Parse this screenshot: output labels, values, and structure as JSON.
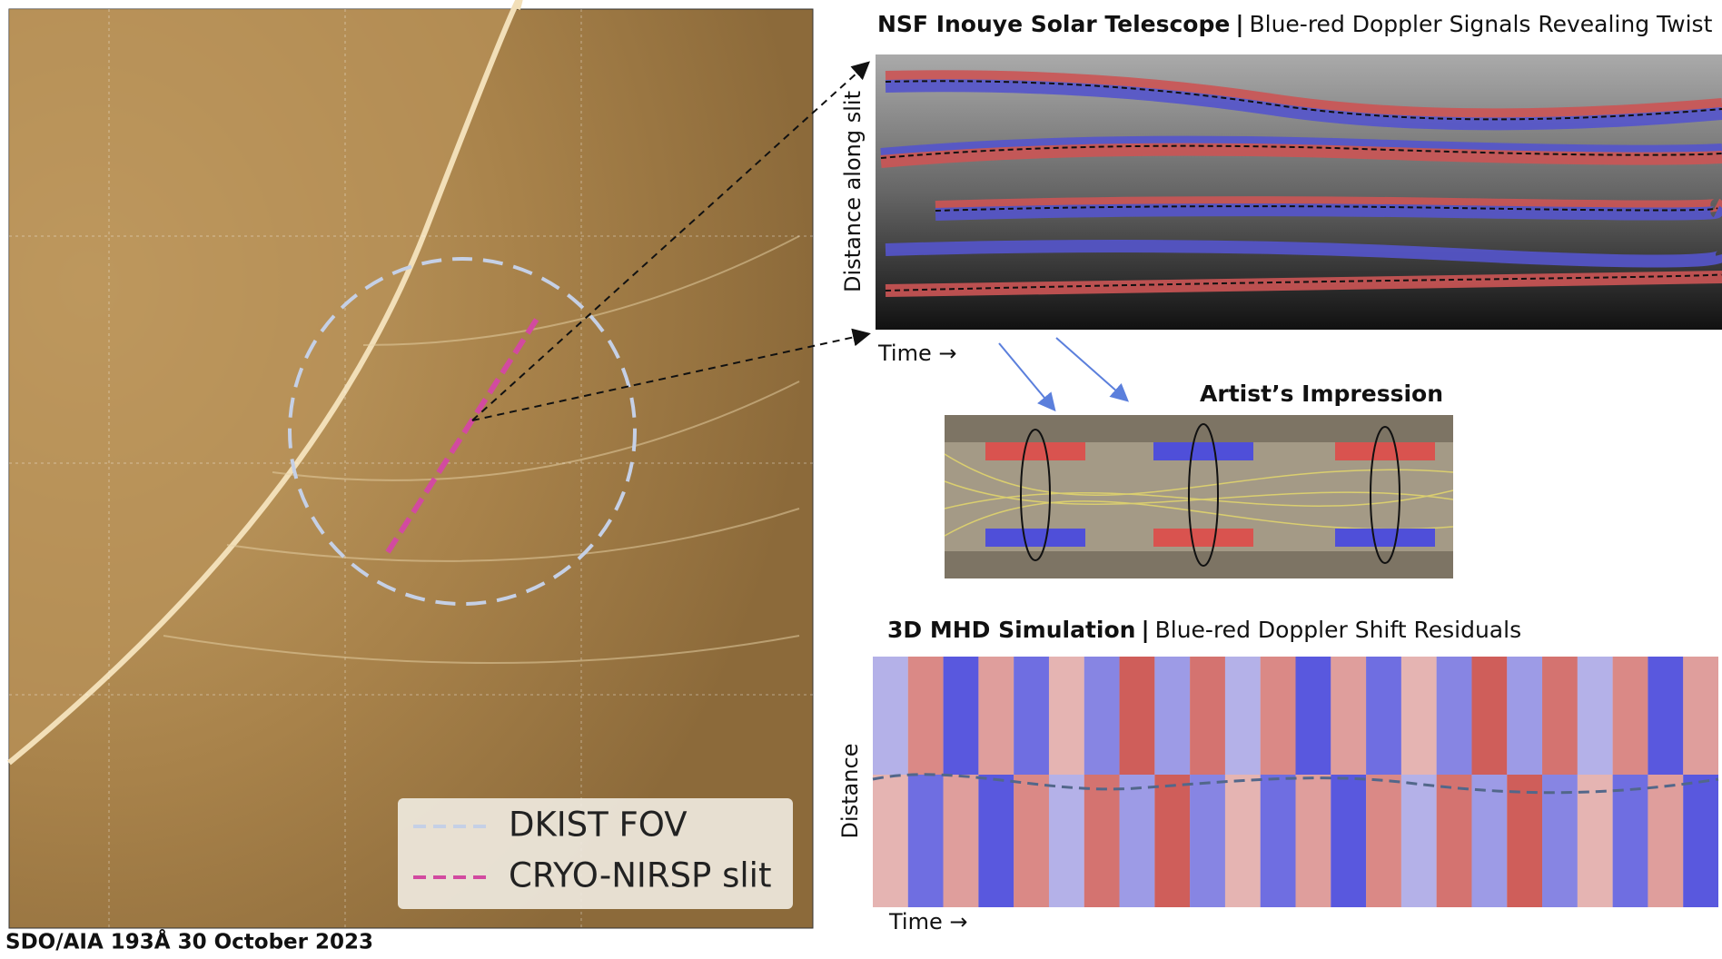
{
  "context_image": {
    "legend": [
      "DKIST FOV",
      "CRYO-NIRSP slit"
    ],
    "caption": "SDO/AIA 193Å  30 October 2023"
  },
  "observation_panel": {
    "title": "NSF Inouye Solar Telescope",
    "separator": "|",
    "subtitle": "Blue-red Doppler  Signals Revealing Twist",
    "y_label": "Distance along slit",
    "x_label": "Time →"
  },
  "artist_panel": {
    "title": "Artist’s Impression"
  },
  "simulation_panel": {
    "title": "3D MHD Simulation",
    "separator": "|",
    "subtitle": "Blue-red Doppler Shift Residuals",
    "y_label": "Distance",
    "x_label": "Time →"
  }
}
